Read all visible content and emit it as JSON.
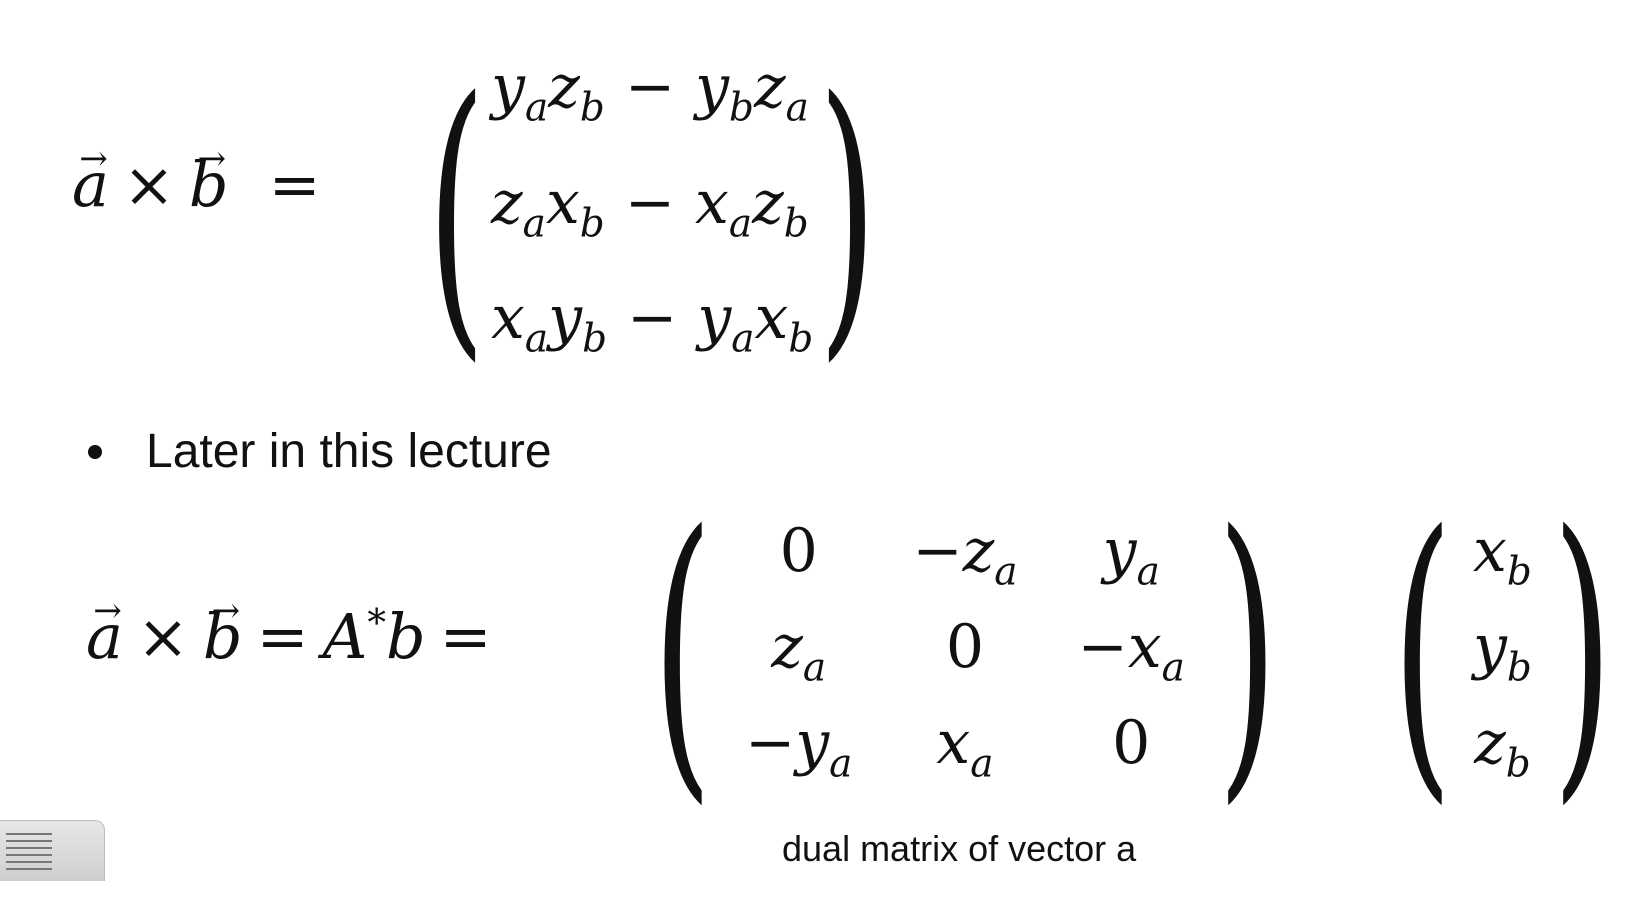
{
  "equation1": {
    "lhs_a": "a",
    "lhs_b": "b",
    "times": "×",
    "equals": "=",
    "rows": [
      [
        "y",
        "a",
        "z",
        "b",
        "−",
        "y",
        "b",
        "z",
        "a"
      ],
      [
        "z",
        "a",
        "x",
        "b",
        "−",
        "x",
        "a",
        "z",
        "b"
      ],
      [
        "x",
        "a",
        "y",
        "b",
        "−",
        "y",
        "a",
        "x",
        "b"
      ]
    ]
  },
  "bullet": {
    "text": "Later in this lecture"
  },
  "equation2": {
    "lhs_a": "a",
    "lhs_b": "b",
    "times": "×",
    "equals": "=",
    "A": "A",
    "star": "*",
    "b": "b",
    "equals2": "=",
    "matrix": [
      [
        {
          "t": "0",
          "s": ""
        },
        {
          "t": "−z",
          "s": "a"
        },
        {
          "t": "y",
          "s": "a"
        }
      ],
      [
        {
          "t": "z",
          "s": "a"
        },
        {
          "t": "0",
          "s": ""
        },
        {
          "t": "−x",
          "s": "a"
        }
      ],
      [
        {
          "t": "−y",
          "s": "a"
        },
        {
          "t": "x",
          "s": "a"
        },
        {
          "t": "0",
          "s": ""
        }
      ]
    ],
    "vector": [
      {
        "t": "x",
        "s": "b"
      },
      {
        "t": "y",
        "s": "b"
      },
      {
        "t": "z",
        "s": "b"
      }
    ]
  },
  "caption": "dual matrix of vector a"
}
